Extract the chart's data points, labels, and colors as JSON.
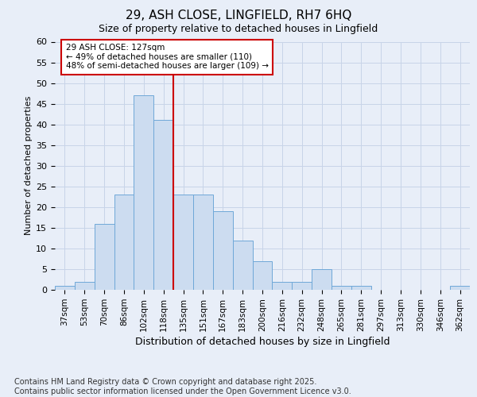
{
  "title_line1": "29, ASH CLOSE, LINGFIELD, RH7 6HQ",
  "title_line2": "Size of property relative to detached houses in Lingfield",
  "xlabel": "Distribution of detached houses by size in Lingfield",
  "ylabel": "Number of detached properties",
  "categories": [
    "37sqm",
    "53sqm",
    "70sqm",
    "86sqm",
    "102sqm",
    "118sqm",
    "135sqm",
    "151sqm",
    "167sqm",
    "183sqm",
    "200sqm",
    "216sqm",
    "232sqm",
    "248sqm",
    "265sqm",
    "281sqm",
    "297sqm",
    "313sqm",
    "330sqm",
    "346sqm",
    "362sqm"
  ],
  "values": [
    1,
    2,
    16,
    23,
    47,
    41,
    23,
    23,
    19,
    12,
    7,
    2,
    2,
    5,
    1,
    1,
    0,
    0,
    0,
    0,
    1
  ],
  "bar_color": "#ccdcf0",
  "bar_edge_color": "#6fa8d8",
  "grid_color": "#c8d4e8",
  "background_color": "#e8eef8",
  "vline_color": "#cc0000",
  "vline_x": 5.5,
  "annotation_text": "29 ASH CLOSE: 127sqm\n← 49% of detached houses are smaller (110)\n48% of semi-detached houses are larger (109) →",
  "annotation_box_color": "white",
  "annotation_box_edge": "#cc0000",
  "ylim_max": 60,
  "yticks": [
    0,
    5,
    10,
    15,
    20,
    25,
    30,
    35,
    40,
    45,
    50,
    55,
    60
  ],
  "footnote": "Contains HM Land Registry data © Crown copyright and database right 2025.\nContains public sector information licensed under the Open Government Licence v3.0.",
  "title1_fontsize": 11,
  "title2_fontsize": 9,
  "xlabel_fontsize": 9,
  "ylabel_fontsize": 8,
  "tick_fontsize": 7.5,
  "ytick_fontsize": 8,
  "annot_fontsize": 7.5,
  "footnote_fontsize": 7
}
